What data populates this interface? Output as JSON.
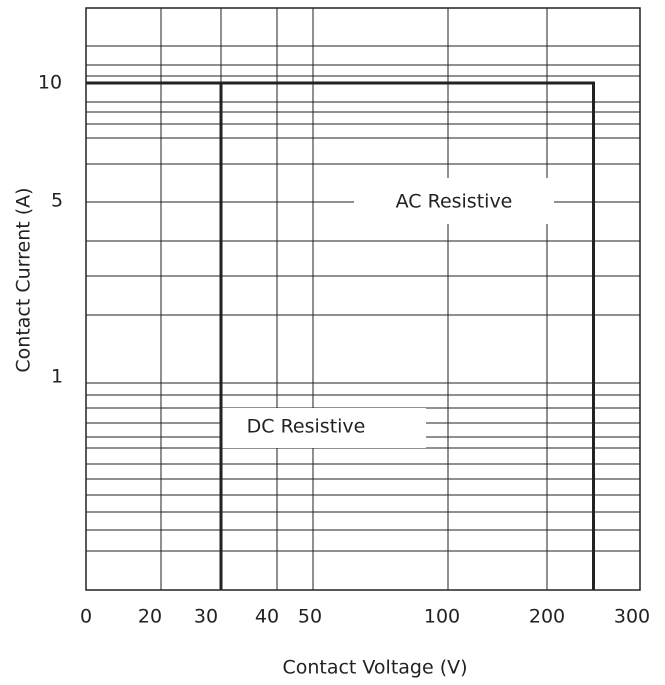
{
  "chart_data": {
    "type": "line",
    "xlabel": "Contact Voltage (V)",
    "ylabel": "Contact Current (A)",
    "x_tick_labels": [
      "0",
      "20",
      "30",
      "40",
      "50",
      "100",
      "200",
      "300"
    ],
    "y_tick_labels": [
      "10",
      "5",
      "1"
    ],
    "grid": true,
    "series": [
      {
        "name": "AC Resistive",
        "points": [
          [
            0,
            10
          ],
          [
            250,
            10
          ],
          [
            250,
            0.1
          ]
        ]
      },
      {
        "name": "DC Resistive",
        "points": [
          [
            0,
            10
          ],
          [
            30,
            10
          ],
          [
            30,
            0.1
          ]
        ]
      }
    ]
  }
}
